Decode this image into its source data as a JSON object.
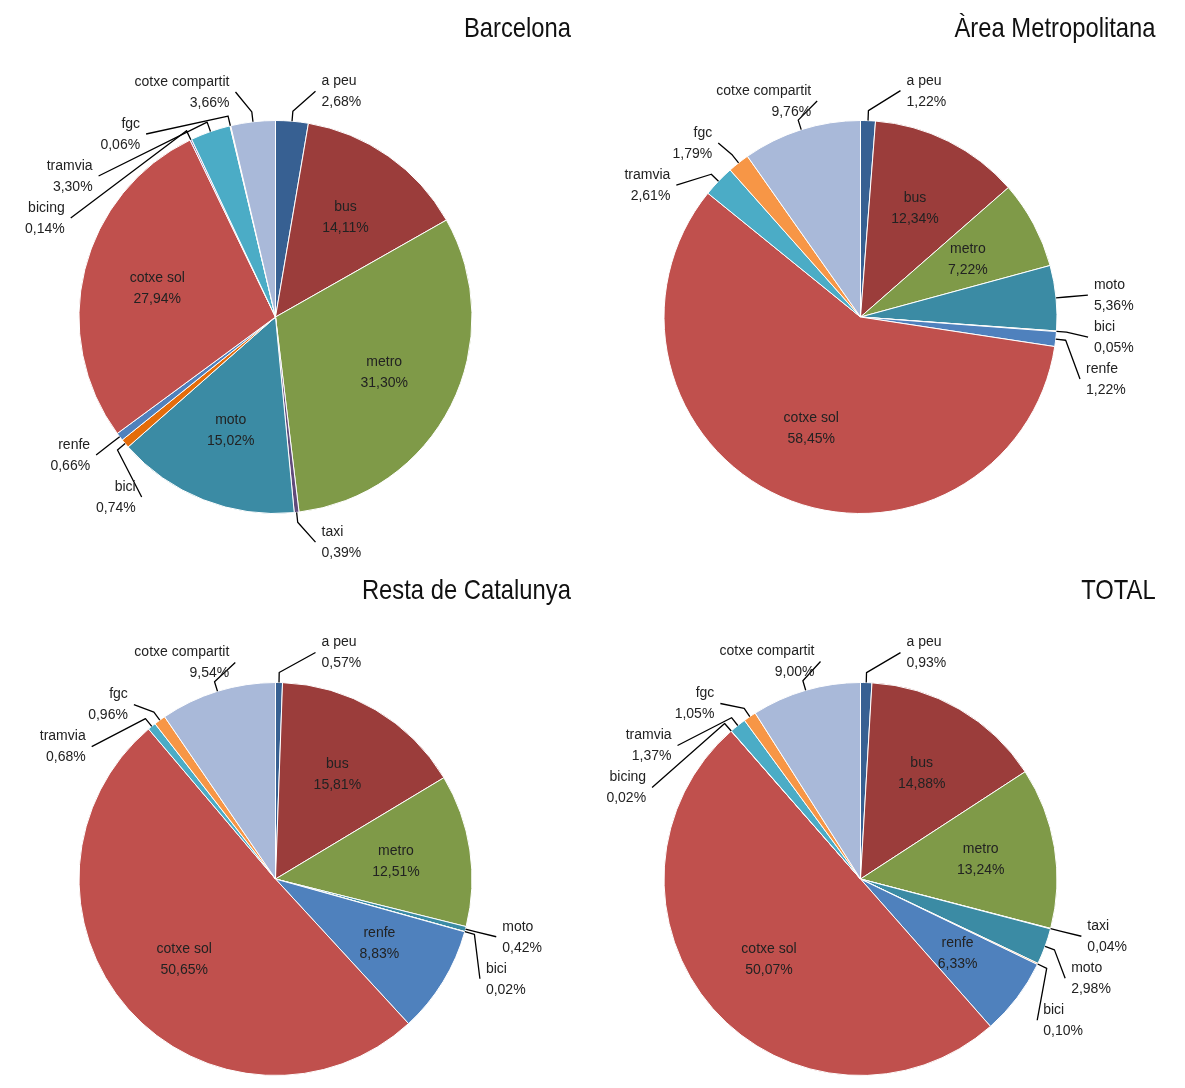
{
  "chart_data": [
    {
      "type": "pie",
      "title": "Barcelona",
      "categories": [
        "a peu",
        "bus",
        "metro",
        "taxi",
        "moto",
        "bici",
        "renfe",
        "cotxe sol",
        "bicing",
        "tramvia",
        "fgc",
        "cotxe compartit"
      ],
      "values": [
        2.68,
        14.11,
        31.3,
        0.39,
        15.02,
        0.74,
        0.66,
        27.94,
        0.14,
        3.3,
        0.06,
        3.66
      ],
      "colors": [
        "#376092",
        "#9b3d3b",
        "#7f9a48",
        "#604a7b",
        "#3b8ba4",
        "#e46c0a",
        "#4f81bd",
        "#c0504d",
        "#8064a2",
        "#4bacc6",
        "#f79646",
        "#a9b9d9"
      ],
      "value_labels": [
        "2,68%",
        "14,11%",
        "31,30%",
        "0,39%",
        "15,02%",
        "0,74%",
        "0,66%",
        "27,94%",
        "0,14%",
        "3,30%",
        "0,06%",
        "3,66%"
      ]
    },
    {
      "type": "pie",
      "title": "Àrea Metropolitana",
      "categories": [
        "a peu",
        "bus",
        "metro",
        "moto",
        "bici",
        "renfe",
        "cotxe sol",
        "tramvia",
        "fgc",
        "cotxe compartit"
      ],
      "values": [
        1.22,
        12.34,
        7.22,
        5.36,
        0.05,
        1.22,
        58.45,
        2.61,
        1.79,
        9.76
      ],
      "colors": [
        "#376092",
        "#9b3d3b",
        "#7f9a48",
        "#3b8ba4",
        "#e46c0a",
        "#4f81bd",
        "#c0504d",
        "#4bacc6",
        "#f79646",
        "#a9b9d9"
      ],
      "value_labels": [
        "1,22%",
        "12,34%",
        "7,22%",
        "5,36%",
        "0,05%",
        "1,22%",
        "58,45%",
        "2,61%",
        "1,79%",
        "9,76%"
      ]
    },
    {
      "type": "pie",
      "title": "Resta de Catalunya",
      "categories": [
        "a peu",
        "bus",
        "metro",
        "moto",
        "bici",
        "renfe",
        "cotxe sol",
        "tramvia",
        "fgc",
        "cotxe compartit"
      ],
      "values": [
        0.57,
        15.81,
        12.51,
        0.42,
        0.02,
        8.83,
        50.65,
        0.68,
        0.96,
        9.54
      ],
      "colors": [
        "#376092",
        "#9b3d3b",
        "#7f9a48",
        "#3b8ba4",
        "#e46c0a",
        "#4f81bd",
        "#c0504d",
        "#4bacc6",
        "#f79646",
        "#a9b9d9"
      ],
      "value_labels": [
        "0,57%",
        "15,81%",
        "12,51%",
        "0,42%",
        "0,02%",
        "8,83%",
        "50,65%",
        "0,68%",
        "0,96%",
        "9,54%"
      ]
    },
    {
      "type": "pie",
      "title": "TOTAL",
      "categories": [
        "a peu",
        "bus",
        "metro",
        "taxi",
        "moto",
        "bici",
        "renfe",
        "cotxe sol",
        "bicing",
        "tramvia",
        "fgc",
        "cotxe compartit"
      ],
      "values": [
        0.93,
        14.88,
        13.24,
        0.04,
        2.98,
        0.1,
        6.33,
        50.07,
        0.02,
        1.37,
        1.05,
        9.0
      ],
      "colors": [
        "#376092",
        "#9b3d3b",
        "#7f9a48",
        "#604a7b",
        "#3b8ba4",
        "#e46c0a",
        "#4f81bd",
        "#c0504d",
        "#8064a2",
        "#4bacc6",
        "#f79646",
        "#a9b9d9"
      ],
      "value_labels": [
        "0,93%",
        "14,88%",
        "13,24%",
        "0,04%",
        "2,98%",
        "0,10%",
        "6,33%",
        "50,07%",
        "0,02%",
        "1,37%",
        "1,05%",
        "9,00%"
      ]
    }
  ]
}
